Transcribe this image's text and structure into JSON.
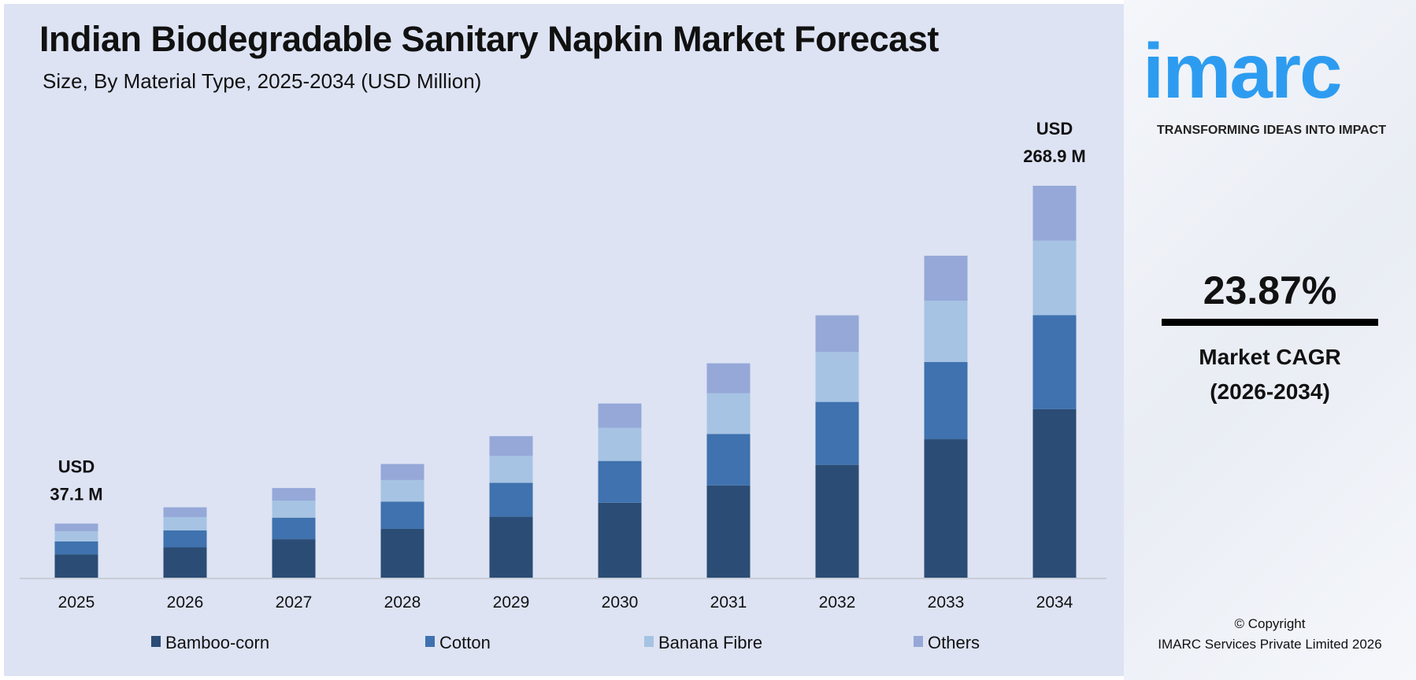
{
  "chart_data": {
    "type": "bar",
    "stacked": true,
    "title": "Indian Biodegradable Sanitary Napkin Market Forecast",
    "subtitle": "Size, By Material Type, 2025-2034 (USD Million)",
    "categories": [
      "2025",
      "2026",
      "2027",
      "2028",
      "2029",
      "2030",
      "2031",
      "2032",
      "2033",
      "2034"
    ],
    "series": [
      {
        "name": "Bamboo-corn",
        "color": "#2b4c74",
        "values": [
          16.0,
          20.8,
          26.4,
          33.5,
          41.8,
          51.4,
          63.3,
          77.4,
          95.0,
          115.6
        ]
      },
      {
        "name": "Cotton",
        "color": "#3f72ae",
        "values": [
          8.9,
          11.6,
          14.8,
          18.7,
          23.3,
          28.7,
          35.3,
          43.2,
          53.0,
          64.5
        ]
      },
      {
        "name": "Banana Fibre",
        "color": "#a6c3e3",
        "values": [
          7.0,
          9.2,
          11.7,
          14.8,
          18.4,
          22.7,
          27.9,
          34.2,
          42.0,
          51.1
        ]
      },
      {
        "name": "Others",
        "color": "#95a8d8",
        "values": [
          5.2,
          6.7,
          8.6,
          11.0,
          13.6,
          16.7,
          20.6,
          25.2,
          30.9,
          37.7
        ]
      }
    ],
    "annotations": [
      {
        "category": "2025",
        "line1": "USD",
        "line2": "37.1 M"
      },
      {
        "category": "2034",
        "line1": "USD",
        "line2": "268.9 M"
      }
    ],
    "legend": "bottom",
    "grid": false
  },
  "side": {
    "logo": "imarc",
    "tagline": "TRANSFORMING IDEAS INTO IMPACT",
    "cagr_value": "23.87%",
    "cagr_label": "Market CAGR",
    "cagr_period": "(2026-2034)",
    "copyright": "© Copyright",
    "company": "IMARC Services Private Limited 2026"
  }
}
